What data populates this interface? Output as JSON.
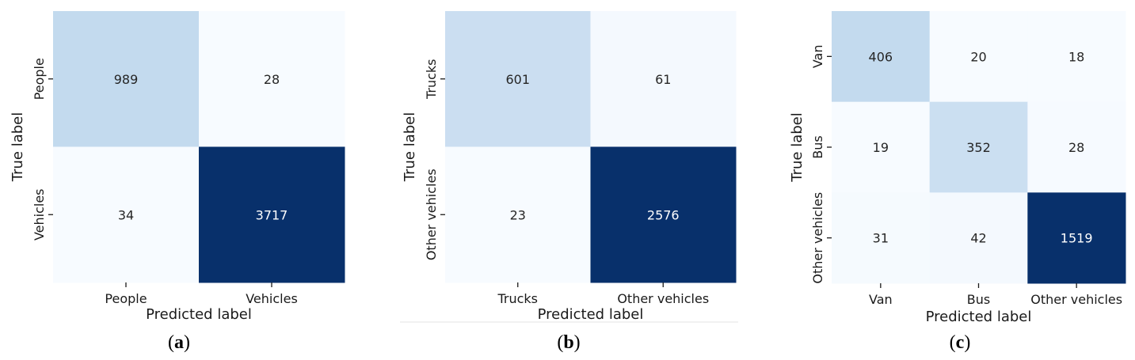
{
  "colors": {
    "low": "#f7fbff",
    "high": "#08306b",
    "mid": "#c6dbef"
  },
  "chart_data": [
    {
      "type": "heatmap",
      "caption_letter": "a",
      "xlabel": "Predicted label",
      "ylabel": "True label",
      "x_categories": [
        "People",
        "Vehicles"
      ],
      "y_categories": [
        "People",
        "Vehicles"
      ],
      "values": [
        [
          989,
          28
        ],
        [
          34,
          3717
        ]
      ]
    },
    {
      "type": "heatmap",
      "caption_letter": "b",
      "xlabel": "Predicted label",
      "ylabel": "True label",
      "x_categories": [
        "Trucks",
        "Other vehicles"
      ],
      "y_categories": [
        "Trucks",
        "Other vehicles"
      ],
      "values": [
        [
          601,
          61
        ],
        [
          23,
          2576
        ]
      ]
    },
    {
      "type": "heatmap",
      "caption_letter": "c",
      "xlabel": "Predicted label",
      "ylabel": "True label",
      "x_categories": [
        "Van",
        "Bus",
        "Other vehicles"
      ],
      "y_categories": [
        "Van",
        "Bus",
        "Other vehicles"
      ],
      "values": [
        [
          406,
          20,
          18
        ],
        [
          19,
          352,
          28
        ],
        [
          31,
          42,
          1519
        ]
      ]
    }
  ]
}
